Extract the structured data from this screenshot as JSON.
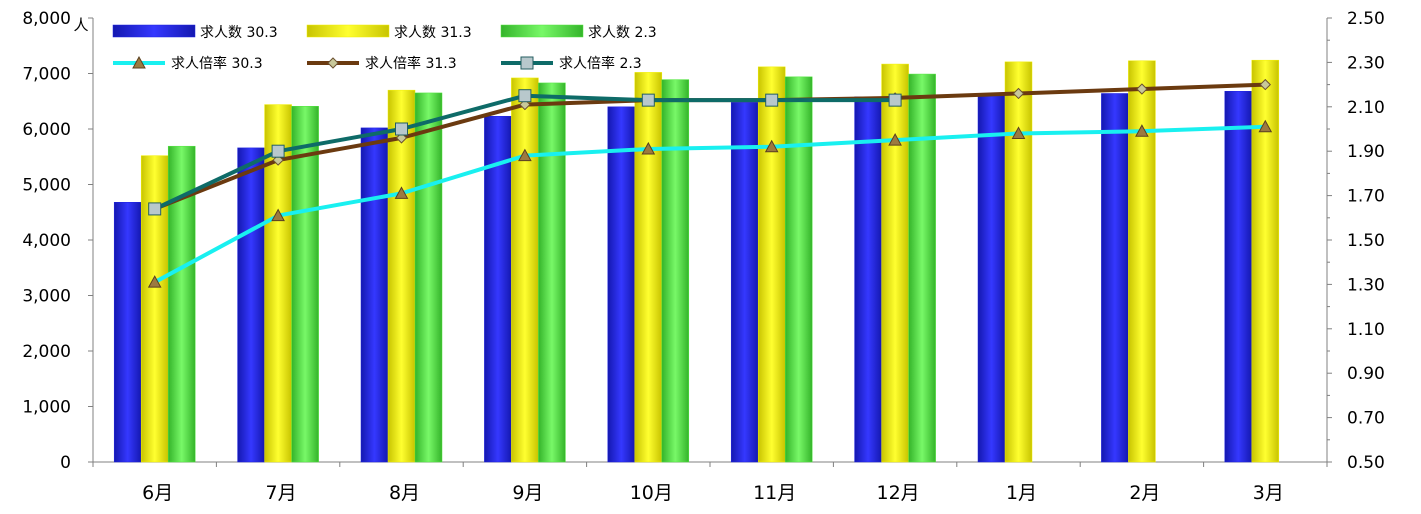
{
  "chart_data": {
    "type": "bar",
    "categories": [
      "6月",
      "7月",
      "8月",
      "9月",
      "10月",
      "11月",
      "12月",
      "1月",
      "2月",
      "3月"
    ],
    "y_left": {
      "unit": "人",
      "range": [
        0,
        8000
      ],
      "ticks": [
        0,
        1000,
        2000,
        3000,
        4000,
        5000,
        6000,
        7000,
        8000
      ],
      "tick_labels": [
        "0",
        "1,000",
        "2,000",
        "3,000",
        "4,000",
        "5,000",
        "6,000",
        "7,000",
        "8,000"
      ]
    },
    "y_right": {
      "range": [
        0.5,
        2.5
      ],
      "ticks": [
        0.5,
        0.7,
        0.9,
        1.1,
        1.3,
        1.5,
        1.7,
        1.9,
        2.1,
        2.3,
        2.5
      ],
      "tick_labels": [
        "0.50",
        "0.70",
        "0.90",
        "1.10",
        "1.30",
        "1.50",
        "1.70",
        "1.90",
        "2.10",
        "2.30",
        "2.50"
      ]
    },
    "bar_series": [
      {
        "name": "求人数 30.3",
        "color": "#1e22e0",
        "values": [
          4680,
          5660,
          6020,
          6230,
          6400,
          6480,
          6580,
          6600,
          6640,
          6680
        ]
      },
      {
        "name": "求人数 31.3",
        "color": "#f2ef00",
        "values": [
          5520,
          6440,
          6700,
          6920,
          7020,
          7120,
          7170,
          7210,
          7230,
          7240
        ]
      },
      {
        "name": "求人数 2.3",
        "color": "#52e63e",
        "values": [
          5690,
          6410,
          6650,
          6830,
          6890,
          6940,
          6990,
          null,
          null,
          null
        ]
      }
    ],
    "line_series": [
      {
        "name": "求人倍率 30.3",
        "color": "#19f0f0",
        "marker": "triangle",
        "values": [
          1.31,
          1.61,
          1.71,
          1.88,
          1.91,
          1.92,
          1.95,
          1.98,
          1.99,
          2.01
        ]
      },
      {
        "name": "求人倍率 31.3",
        "color": "#6b3a10",
        "marker": "diamond",
        "values": [
          1.64,
          1.86,
          1.96,
          2.11,
          2.13,
          2.13,
          2.14,
          2.16,
          2.18,
          2.2
        ]
      },
      {
        "name": "求人倍率 2.3",
        "color": "#0e6b68",
        "marker": "square",
        "values": [
          1.64,
          1.9,
          2.0,
          2.15,
          2.13,
          2.13,
          2.13,
          null,
          null,
          null
        ]
      }
    ],
    "legend": "top-left",
    "grid": false
  }
}
